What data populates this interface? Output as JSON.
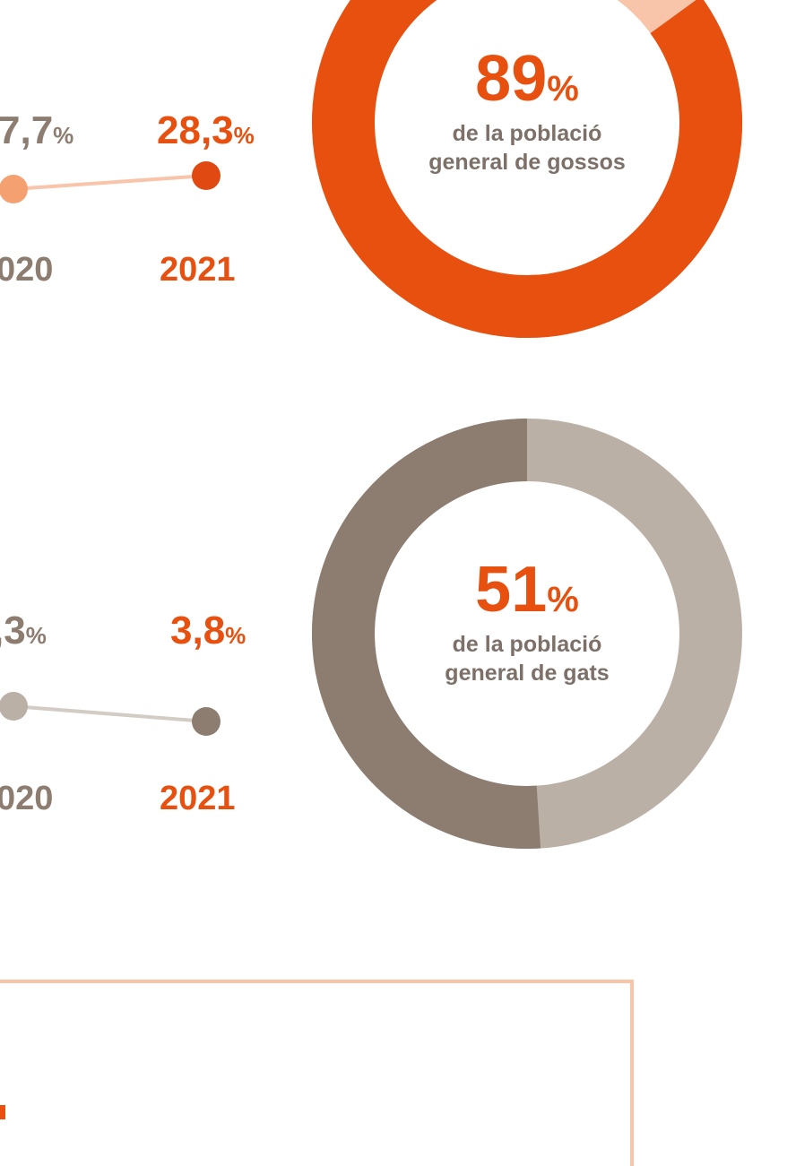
{
  "dogs": {
    "left_value": "7,7",
    "left_unit": "%",
    "right_value": "28,3",
    "right_unit": "%",
    "left_year": "020",
    "right_year": "2021",
    "donut": {
      "value": 89,
      "unit": "%",
      "caption_1": "de la població",
      "caption_2": "general de gossos",
      "color": "#e8500f",
      "rest_color": "#f8c4aa"
    }
  },
  "cats": {
    "left_value": ",3",
    "left_unit": "%",
    "right_value": "3,8",
    "right_unit": "%",
    "left_year": "020",
    "right_year": "2021",
    "donut": {
      "value": 51,
      "unit": "%",
      "caption_1": "de la població",
      "caption_2": "general de gats",
      "color": "#8c7d70",
      "rest_color": "#bab0a6"
    }
  }
}
